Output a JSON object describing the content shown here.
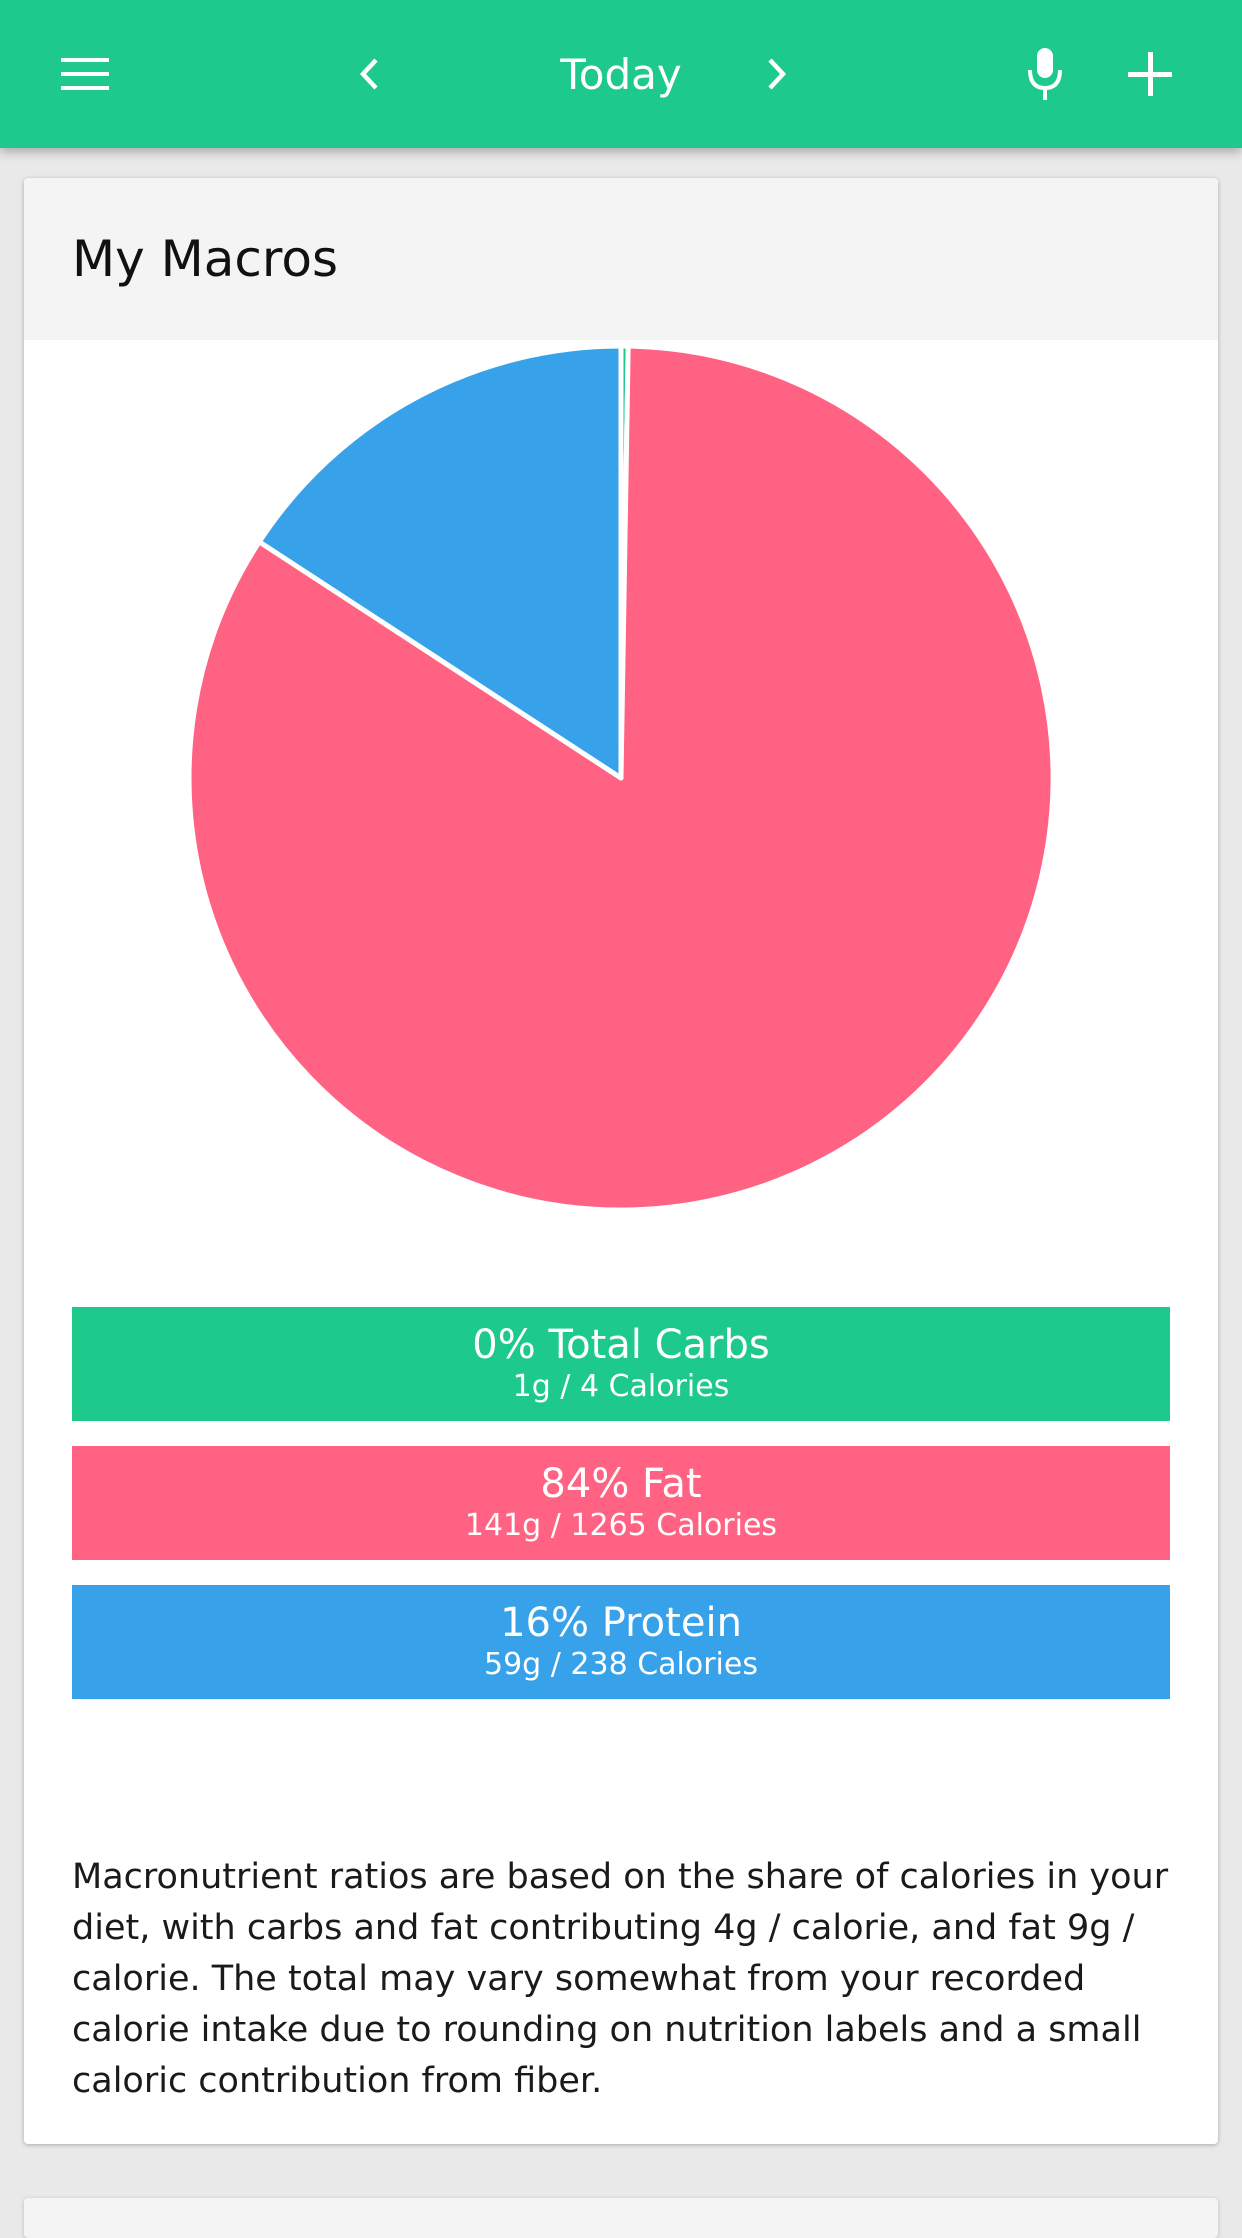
{
  "appbar": {
    "title": "Today",
    "color": "#1ec98c",
    "icons": [
      "menu-icon",
      "chevron-left-icon",
      "chevron-right-icon",
      "microphone-icon",
      "plus-icon"
    ]
  },
  "card": {
    "title": "My Macros"
  },
  "chart_data": {
    "type": "pie",
    "slices": [
      {
        "label": "Total Carbs",
        "percent": 0,
        "calories": 4,
        "color": "#1ec98c"
      },
      {
        "label": "Fat",
        "percent": 84,
        "calories": 1265,
        "color": "#ff6282"
      },
      {
        "label": "Protein",
        "percent": 16,
        "calories": 238,
        "color": "#37a2ea"
      }
    ],
    "start": "top, clockwise"
  },
  "macros": [
    {
      "title": "0% Total Carbs",
      "detail": "1g / 4 Calories",
      "color": "#1ec98c"
    },
    {
      "title": "84% Fat",
      "detail": "141g / 1265 Calories",
      "color": "#ff6282"
    },
    {
      "title": "16% Protein",
      "detail": "59g / 238 Calories",
      "color": "#37a2ea"
    }
  ],
  "note": "Macronutrient ratios are based on the share of calories in your diet, with carbs and fat contributing 4g / calorie, and fat 9g / calorie. The total may vary somewhat from your recorded calorie intake due to rounding on nutrition labels and a small caloric contribution from fiber."
}
